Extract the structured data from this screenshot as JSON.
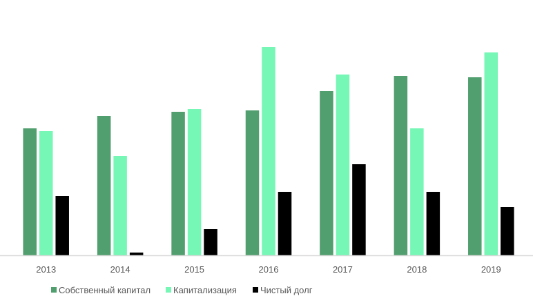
{
  "chart_data": {
    "type": "bar",
    "title": "",
    "xlabel": "",
    "ylabel": "",
    "categories": [
      "2013",
      "2014",
      "2015",
      "2016",
      "2017",
      "2018",
      "2019"
    ],
    "series": [
      {
        "name": "Собственный капитал",
        "color": "#519E6E",
        "values": [
          184,
          202,
          208,
          210,
          238,
          260,
          258
        ]
      },
      {
        "name": "Капитализация",
        "color": "#76F7B5",
        "values": [
          180,
          144,
          212,
          302,
          262,
          184,
          294
        ]
      },
      {
        "name": "Чистый долг",
        "color": "#000000",
        "values": [
          86,
          4,
          38,
          92,
          132,
          92,
          70
        ]
      }
    ],
    "ylim": [
      0,
      370
    ],
    "grid": false,
    "legend_position": "bottom"
  }
}
